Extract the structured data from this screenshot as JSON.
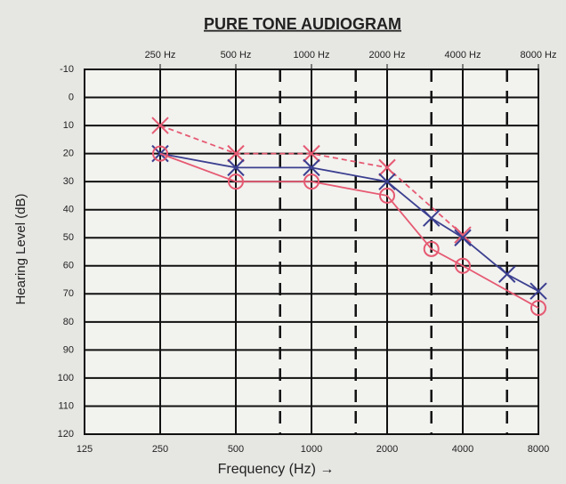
{
  "chart_data": {
    "type": "line",
    "title": "PURE TONE AUDIOGRAM",
    "x_label": "Frequency (Hz) →",
    "y_label": "Hearing Level (dB)",
    "x_scale": "log",
    "xlim": [
      125,
      8000
    ],
    "xticks": [
      125,
      250,
      500,
      1000,
      2000,
      4000,
      8000
    ],
    "x2ticks": [
      {
        "value": 250,
        "label": "250 Hz"
      },
      {
        "value": 500,
        "label": "500 Hz"
      },
      {
        "value": 1000,
        "label": "1000 Hz"
      },
      {
        "value": 2000,
        "label": "2000 Hz"
      },
      {
        "value": 4000,
        "label": "4000 Hz"
      },
      {
        "value": 8000,
        "label": "8000 Hz"
      }
    ],
    "xminor": [
      750,
      1500,
      3000,
      6000
    ],
    "ylim": [
      -10,
      120
    ],
    "y_inverted": true,
    "yticks": [
      -10,
      0,
      10,
      20,
      30,
      40,
      50,
      60,
      70,
      80,
      90,
      100,
      110,
      120
    ],
    "grid": true,
    "series": [
      {
        "color": "#e65a72",
        "marker": "x",
        "dashed": true,
        "x": [
          250,
          500,
          1000,
          2000,
          4000
        ],
        "values": [
          10,
          20,
          20,
          25,
          49
        ]
      },
      {
        "color": "#3b3f8f",
        "marker": "x",
        "dashed": false,
        "x": [
          250,
          500,
          1000,
          2000,
          3000,
          4000,
          6000,
          8000
        ],
        "values": [
          20,
          25,
          25,
          30,
          43,
          50,
          63,
          69
        ]
      },
      {
        "color": "#e65a72",
        "marker": "o",
        "dashed": false,
        "x": [
          250,
          500,
          1000,
          2000,
          3000,
          4000,
          8000
        ],
        "values": [
          20,
          30,
          30,
          35,
          54,
          60,
          75
        ]
      }
    ]
  }
}
